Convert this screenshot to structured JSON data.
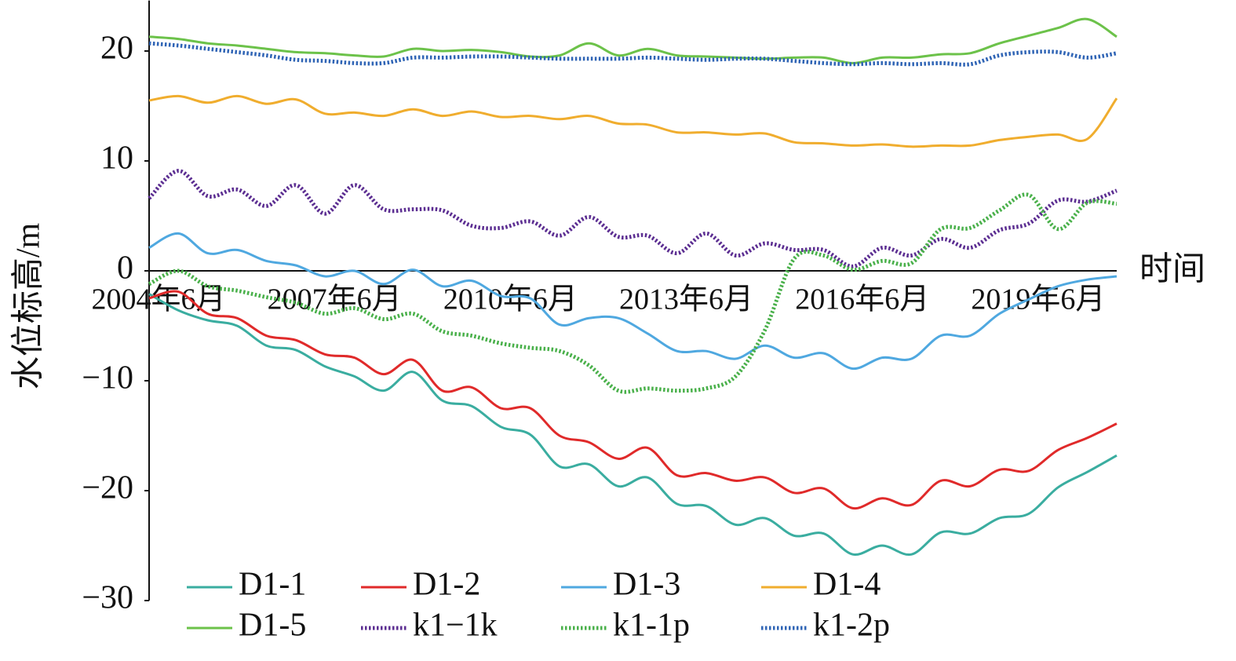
{
  "chart_data": {
    "type": "line",
    "ylabel": "水位标高/m",
    "xlabel": "时间",
    "categories": [
      "2004年6月",
      null,
      null,
      null,
      null,
      null,
      "2007年6月",
      null,
      null,
      null,
      null,
      null,
      "2010年6月",
      null,
      null,
      null,
      null,
      null,
      "2013年6月",
      null,
      null,
      null,
      null,
      null,
      "2016年6月",
      null,
      null,
      null,
      null,
      null,
      "2019年6月",
      null,
      null,
      null
    ],
    "ylim": [
      -30,
      24.6
    ],
    "yticks": [
      {
        "value": -30,
        "label": "−30"
      },
      {
        "value": -20,
        "label": "−20"
      },
      {
        "value": -10,
        "label": "−10"
      },
      0,
      10,
      20
    ],
    "grid": false,
    "legend": "bottom",
    "series": [
      {
        "name": "D1-1",
        "color": "#3aada0",
        "style": "solid",
        "values": [
          -2.1,
          -3.6,
          -4.5,
          -5.0,
          -6.8,
          -7.2,
          -8.7,
          -9.6,
          -10.9,
          -9.2,
          -11.8,
          -12.3,
          -14.2,
          -14.9,
          -17.8,
          -17.6,
          -19.6,
          -18.8,
          -21.2,
          -21.4,
          -23.1,
          -22.5,
          -24.1,
          -23.9,
          -25.8,
          -25.0,
          -25.8,
          -23.8,
          -23.9,
          -22.5,
          -22.1,
          -19.7,
          -18.3,
          -16.8
        ]
      },
      {
        "name": "D1-2",
        "color": "#e02a2a",
        "style": "solid",
        "values": [
          -2.5,
          -1.9,
          -3.9,
          -4.3,
          -5.9,
          -6.3,
          -7.6,
          -7.9,
          -9.4,
          -8.1,
          -10.9,
          -10.6,
          -12.5,
          -12.5,
          -15.0,
          -15.6,
          -17.1,
          -16.1,
          -18.6,
          -18.4,
          -19.1,
          -18.8,
          -20.2,
          -19.8,
          -21.6,
          -20.7,
          -21.3,
          -19.1,
          -19.6,
          -18.1,
          -18.2,
          -16.3,
          -15.2,
          -13.9
        ]
      },
      {
        "name": "D1-3",
        "color": "#4fa8e0",
        "style": "solid",
        "values": [
          2.1,
          3.4,
          1.6,
          1.9,
          0.9,
          0.5,
          -0.5,
          0,
          -1.2,
          0.1,
          -1.4,
          -0.9,
          -2.3,
          -2.5,
          -4.9,
          -4.3,
          -4.3,
          -5.7,
          -7.3,
          -7.3,
          -8.0,
          -6.8,
          -7.9,
          -7.5,
          -8.9,
          -7.9,
          -8.0,
          -5.9,
          -5.9,
          -3.9,
          -2.6,
          -1.4,
          -0.8,
          -0.5
        ]
      },
      {
        "name": "D1-4",
        "color": "#f0ad2e",
        "style": "solid",
        "values": [
          15.5,
          15.9,
          15.3,
          15.9,
          15.2,
          15.6,
          14.3,
          14.4,
          14.1,
          14.7,
          14.1,
          14.5,
          14.0,
          14.1,
          13.8,
          14.1,
          13.4,
          13.3,
          12.6,
          12.6,
          12.4,
          12.5,
          11.7,
          11.6,
          11.4,
          11.5,
          11.3,
          11.4,
          11.4,
          11.9,
          12.2,
          12.4,
          12.0,
          15.7
        ]
      },
      {
        "name": "D1-5",
        "color": "#6cc24a",
        "style": "solid",
        "values": [
          21.3,
          21.1,
          20.7,
          20.5,
          20.2,
          19.9,
          19.8,
          19.6,
          19.5,
          20.2,
          20.0,
          20.1,
          19.9,
          19.5,
          19.6,
          20.7,
          19.6,
          20.2,
          19.6,
          19.5,
          19.4,
          19.3,
          19.4,
          19.4,
          18.9,
          19.4,
          19.4,
          19.7,
          19.8,
          20.7,
          21.4,
          22.1,
          22.9,
          21.3
        ]
      },
      {
        "name": "k1−1k",
        "color": "#5b2d91",
        "style": "dotted",
        "values": [
          6.6,
          9.1,
          6.8,
          7.4,
          5.9,
          7.8,
          5.2,
          7.8,
          5.6,
          5.6,
          5.5,
          4.1,
          3.9,
          4.5,
          3.2,
          4.9,
          3.1,
          3.2,
          1.6,
          3.4,
          1.4,
          2.5,
          1.9,
          1.9,
          0.4,
          2.1,
          1.4,
          2.9,
          2.1,
          3.7,
          4.3,
          6.4,
          6.3,
          7.3
        ]
      },
      {
        "name": "k1-1p",
        "color": "#49b04a",
        "style": "dotted",
        "values": [
          -1.2,
          0,
          -1.4,
          -1.8,
          -2.4,
          -2.9,
          -3.9,
          -3.4,
          -4.4,
          -3.9,
          -5.5,
          -5.9,
          -6.6,
          -7.0,
          -7.3,
          -8.6,
          -10.9,
          -10.7,
          -10.9,
          -10.7,
          -9.6,
          -5.4,
          1.1,
          1.4,
          0.1,
          0.9,
          0.7,
          3.8,
          3.9,
          5.5,
          6.9,
          3.8,
          6.2,
          6.1
        ]
      },
      {
        "name": "k1-2p",
        "color": "#2f64b5",
        "style": "dotted",
        "values": [
          20.7,
          20.5,
          20.2,
          19.9,
          19.6,
          19.2,
          19.1,
          18.9,
          18.9,
          19.4,
          19.4,
          19.5,
          19.5,
          19.4,
          19.3,
          19.3,
          19.3,
          19.4,
          19.3,
          19.2,
          19.3,
          19.3,
          19.1,
          18.9,
          18.8,
          18.9,
          18.8,
          18.9,
          18.8,
          19.6,
          19.9,
          19.9,
          19.4,
          19.8
        ]
      }
    ]
  }
}
